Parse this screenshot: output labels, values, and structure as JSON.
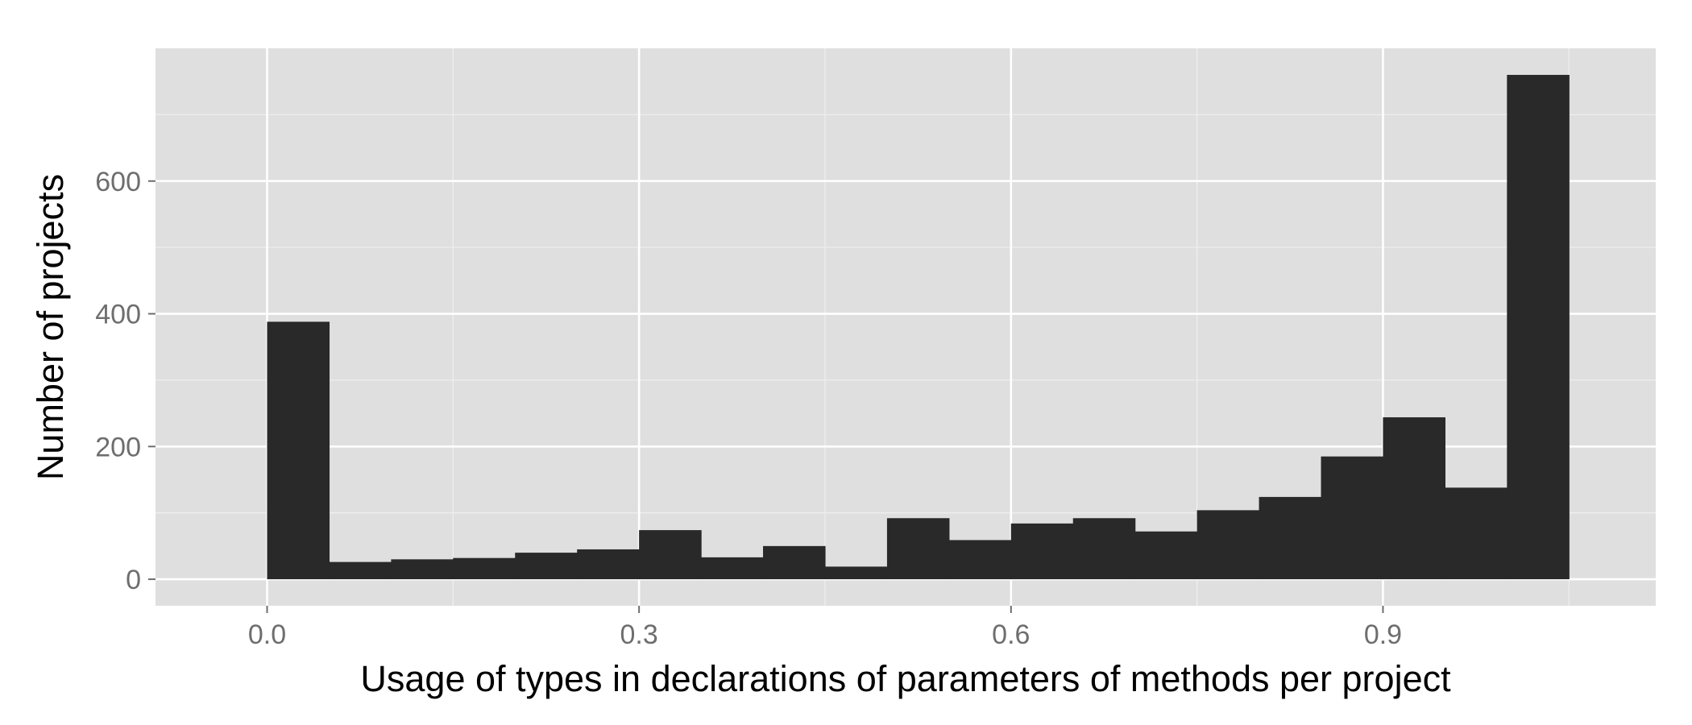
{
  "chart_data": {
    "type": "bar",
    "subtype": "histogram",
    "xlabel": "Usage of types in declarations of parameters of methods per project",
    "ylabel": "Number of projects",
    "bin_width": 0.05,
    "xlim": [
      -0.09,
      1.12
    ],
    "ylim": [
      -40,
      800
    ],
    "x_ticks": [
      {
        "value": 0.0,
        "label": "0.0"
      },
      {
        "value": 0.3,
        "label": "0.3"
      },
      {
        "value": 0.6,
        "label": "0.6"
      },
      {
        "value": 0.9,
        "label": "0.9"
      }
    ],
    "y_ticks": [
      {
        "value": 0,
        "label": "0"
      },
      {
        "value": 200,
        "label": "200"
      },
      {
        "value": 400,
        "label": "400"
      },
      {
        "value": 600,
        "label": "600"
      }
    ],
    "bins": [
      {
        "start": 0.0,
        "end": 0.05,
        "count": 388
      },
      {
        "start": 0.05,
        "end": 0.1,
        "count": 26
      },
      {
        "start": 0.1,
        "end": 0.15,
        "count": 30
      },
      {
        "start": 0.15,
        "end": 0.2,
        "count": 32
      },
      {
        "start": 0.2,
        "end": 0.25,
        "count": 40
      },
      {
        "start": 0.25,
        "end": 0.3,
        "count": 45
      },
      {
        "start": 0.3,
        "end": 0.35,
        "count": 74
      },
      {
        "start": 0.35,
        "end": 0.4,
        "count": 33
      },
      {
        "start": 0.4,
        "end": 0.45,
        "count": 50
      },
      {
        "start": 0.45,
        "end": 0.5,
        "count": 19
      },
      {
        "start": 0.5,
        "end": 0.55,
        "count": 92
      },
      {
        "start": 0.55,
        "end": 0.6,
        "count": 59
      },
      {
        "start": 0.6,
        "end": 0.65,
        "count": 84
      },
      {
        "start": 0.65,
        "end": 0.7,
        "count": 92
      },
      {
        "start": 0.7,
        "end": 0.75,
        "count": 72
      },
      {
        "start": 0.75,
        "end": 0.8,
        "count": 104
      },
      {
        "start": 0.8,
        "end": 0.85,
        "count": 124
      },
      {
        "start": 0.85,
        "end": 0.9,
        "count": 185
      },
      {
        "start": 0.9,
        "end": 0.95,
        "count": 244
      },
      {
        "start": 0.95,
        "end": 1.0,
        "count": 138
      },
      {
        "start": 1.0,
        "end": 1.05,
        "count": 760
      }
    ],
    "grid": true,
    "legend": "none",
    "colors": {
      "bar": "#292929",
      "panel": "#dfdfdf",
      "grid_major": "#ffffff",
      "grid_minor": "#eeeeee",
      "tick_text": "#6e6e6e",
      "axis_title": "#000000",
      "background": "#ffffff"
    }
  }
}
